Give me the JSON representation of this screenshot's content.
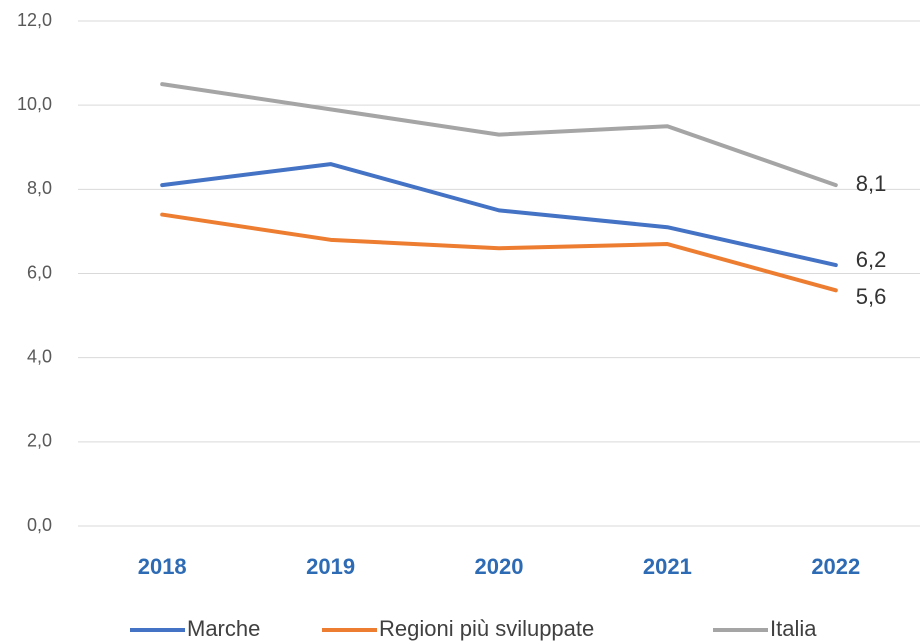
{
  "chart_data": {
    "type": "line",
    "categories": [
      "2018",
      "2019",
      "2020",
      "2021",
      "2022"
    ],
    "series": [
      {
        "name": "Marche",
        "color": "#4472c4",
        "values": [
          8.1,
          8.6,
          7.5,
          7.1,
          6.2
        ],
        "value_labels": [
          null,
          null,
          null,
          null,
          "6,2"
        ]
      },
      {
        "name": "Regioni più sviluppate",
        "color": "#ed7d31",
        "values": [
          7.4,
          6.8,
          6.6,
          6.7,
          5.6
        ],
        "value_labels": [
          null,
          null,
          null,
          null,
          "5,6"
        ]
      },
      {
        "name": "Italia",
        "color": "#a5a5a5",
        "values": [
          10.5,
          9.9,
          9.3,
          9.5,
          8.1
        ],
        "value_labels": [
          null,
          null,
          null,
          null,
          "8,1"
        ]
      }
    ],
    "ylim": [
      0,
      12
    ],
    "yticks": [
      {
        "value": 0,
        "label": "0,0"
      },
      {
        "value": 2,
        "label": "2,0"
      },
      {
        "value": 4,
        "label": "4,0"
      },
      {
        "value": 6,
        "label": "6,0"
      },
      {
        "value": 8,
        "label": "8,0"
      },
      {
        "value": 10,
        "label": "10,0"
      },
      {
        "value": 12,
        "label": "12,0"
      }
    ],
    "grid": true,
    "legend": "bottom"
  }
}
